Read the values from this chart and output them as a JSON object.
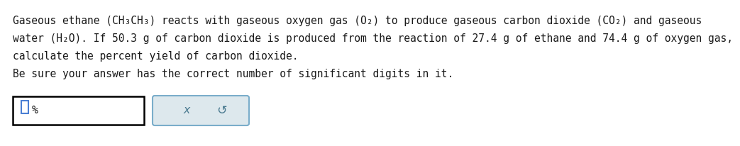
{
  "bg_color": "#ffffff",
  "text_color": "#1a1a1a",
  "font_size": 10.5,
  "line1": "Gaseous ethane (CH₃CH₃) reacts with gaseous oxygen gas (O₂) to produce gaseous carbon dioxide (CO₂) and gaseous",
  "line2": "water (H₂O). If 50.3 g of carbon dioxide is produced from the reaction of 27.4 g of ethane and 74.4 g of oxygen gas,",
  "line3": "calculate the percent yield of carbon dioxide.",
  "line4": "Be sure your answer has the correct number of significant digits in it.",
  "percent_symbol": "%",
  "x_symbol": "x",
  "undo_symbol": "↺",
  "cursor_color": "#4a7fd4",
  "button_bg": "#dde8ed",
  "button_border": "#7aadca",
  "input_border": "#000000",
  "symbol_color": "#4a7a90"
}
